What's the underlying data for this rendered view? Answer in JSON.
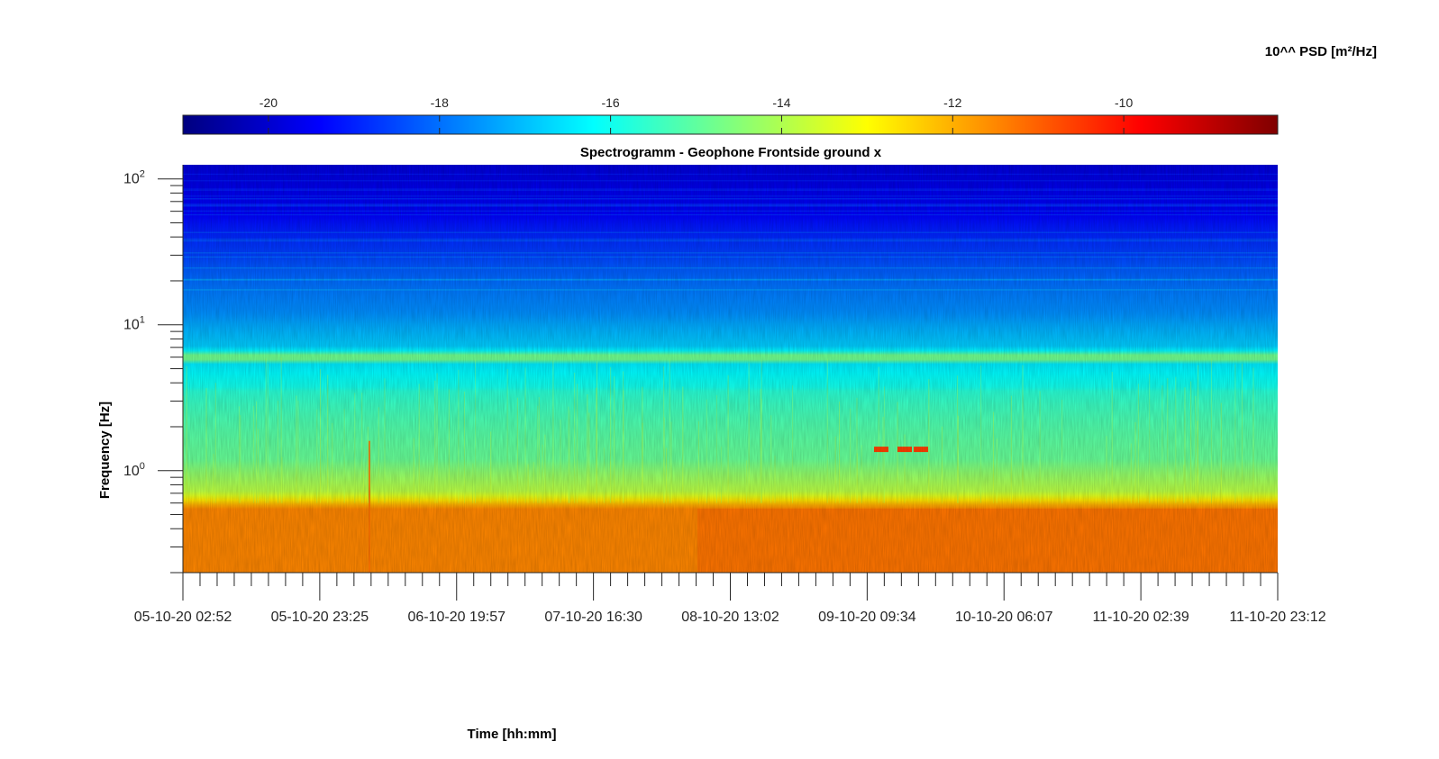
{
  "chart_data": {
    "type": "heatmap",
    "title": "Spectrogramm - Geophone Frontside ground x",
    "xlabel": "Time [hh:mm]",
    "ylabel": "Frequency [Hz]",
    "x_ticks": [
      "05-10-20 02:52",
      "05-10-20 23:25",
      "06-10-20 19:57",
      "07-10-20 16:30",
      "08-10-20 13:02",
      "09-10-20 09:34",
      "10-10-20 06:07",
      "11-10-20 02:39",
      "11-10-20 23:12"
    ],
    "x_range": [
      "05-10-20 02:52",
      "11-10-20 23:12"
    ],
    "y_scale": "log",
    "y_ticks": [
      {
        "base": "10",
        "exp": "0",
        "value": 1
      },
      {
        "base": "10",
        "exp": "1",
        "value": 10
      },
      {
        "base": "10",
        "exp": "2",
        "value": 100
      }
    ],
    "y_range": [
      0.2,
      125
    ],
    "colorbar": {
      "label": "10^^ PSD [m²/Hz]",
      "position": "top",
      "ticks": [
        -20,
        -18,
        -16,
        -14,
        -12,
        -10
      ],
      "range": [
        -21,
        -8.2
      ],
      "colormap": "jet"
    },
    "approx_levels": [
      {
        "band_hz": [
          0.2,
          0.6
        ],
        "log10_psd": -11.5
      },
      {
        "band_hz": [
          0.6,
          3.5
        ],
        "log10_psd": -15
      },
      {
        "band_hz": [
          3.5,
          5.5
        ],
        "log10_psd": -16
      },
      {
        "band_hz": [
          5.8,
          6.2
        ],
        "log10_psd": -15
      },
      {
        "band_hz": [
          6.5,
          30
        ],
        "log10_psd": -17.5
      },
      {
        "band_hz": [
          30,
          125
        ],
        "log10_psd": -19.5
      }
    ],
    "grid": false
  }
}
